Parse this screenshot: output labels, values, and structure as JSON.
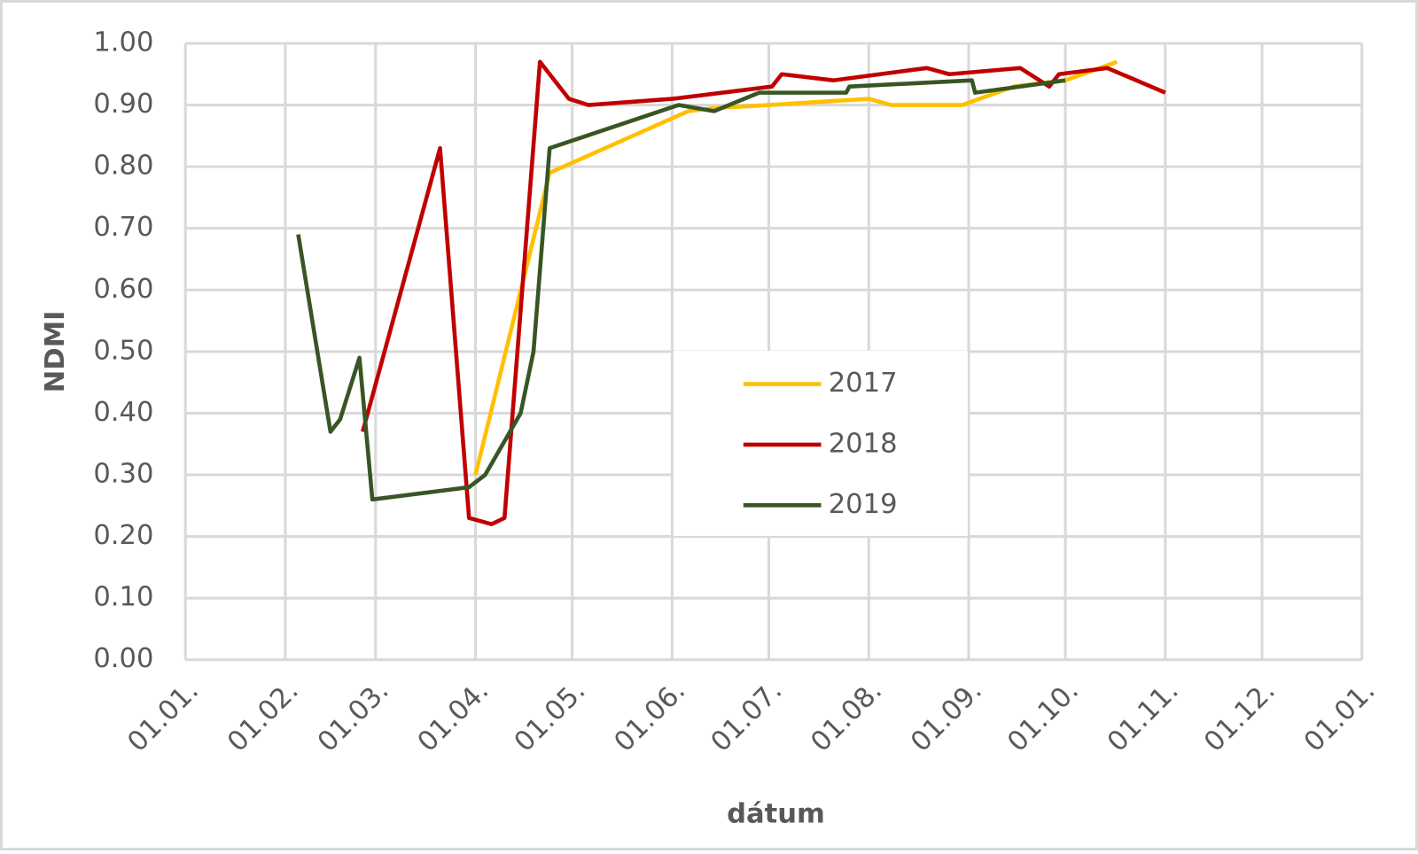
{
  "chart_data": {
    "type": "line",
    "ylabel": "NDMI",
    "xlabel": "dátum",
    "xlim": [
      0,
      365
    ],
    "ylim": [
      0,
      1
    ],
    "xticks": [
      {
        "value": 0,
        "label": "01.01."
      },
      {
        "value": 31,
        "label": "01.02."
      },
      {
        "value": 59,
        "label": "01.03."
      },
      {
        "value": 90,
        "label": "01.04."
      },
      {
        "value": 120,
        "label": "01.05."
      },
      {
        "value": 151,
        "label": "01.06."
      },
      {
        "value": 181,
        "label": "01.07."
      },
      {
        "value": 212,
        "label": "01.08."
      },
      {
        "value": 243,
        "label": "01.09."
      },
      {
        "value": 273,
        "label": "01.10."
      },
      {
        "value": 304,
        "label": "01.11."
      },
      {
        "value": 334,
        "label": "01.12."
      },
      {
        "value": 365,
        "label": "01.01."
      }
    ],
    "yticks": [
      {
        "value": 0,
        "label": "0.00"
      },
      {
        "value": 0.1,
        "label": "0.10"
      },
      {
        "value": 0.2,
        "label": "0.20"
      },
      {
        "value": 0.3,
        "label": "0.30"
      },
      {
        "value": 0.4,
        "label": "0.40"
      },
      {
        "value": 0.5,
        "label": "0.50"
      },
      {
        "value": 0.6,
        "label": "0.60"
      },
      {
        "value": 0.7,
        "label": "0.70"
      },
      {
        "value": 0.8,
        "label": "0.80"
      },
      {
        "value": 0.9,
        "label": "0.90"
      },
      {
        "value": 1,
        "label": "1.00"
      }
    ],
    "grid": true,
    "series": [
      {
        "name": "2017",
        "color": "#ffc000",
        "x": [
          90,
          113,
          156,
          164,
          181,
          212,
          219,
          241,
          257,
          273,
          289
        ],
        "values": [
          0.3,
          0.79,
          0.89,
          0.895,
          0.9,
          0.91,
          0.9,
          0.9,
          0.93,
          0.94,
          0.97
        ]
      },
      {
        "name": "2018",
        "color": "#c00000",
        "x": [
          55,
          79,
          88,
          95,
          99,
          110,
          119,
          125,
          151,
          182,
          185,
          201,
          230,
          237,
          259,
          268,
          271,
          286,
          304
        ],
        "values": [
          0.37,
          0.83,
          0.23,
          0.22,
          0.23,
          0.97,
          0.91,
          0.9,
          0.91,
          0.93,
          0.95,
          0.94,
          0.96,
          0.95,
          0.96,
          0.93,
          0.95,
          0.96,
          0.92
        ]
      },
      {
        "name": "2019",
        "color": "#375623",
        "x": [
          35,
          45,
          48,
          54,
          58,
          88,
          93,
          104,
          108,
          113,
          153,
          164,
          178,
          205,
          206,
          244,
          245,
          273
        ],
        "values": [
          0.69,
          0.37,
          0.39,
          0.49,
          0.26,
          0.28,
          0.3,
          0.4,
          0.5,
          0.83,
          0.9,
          0.89,
          0.92,
          0.92,
          0.93,
          0.94,
          0.92,
          0.94
        ]
      }
    ]
  }
}
